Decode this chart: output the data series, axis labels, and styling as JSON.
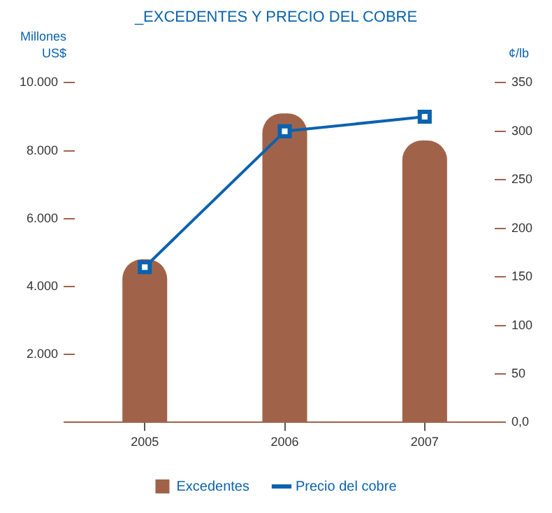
{
  "chart_data": {
    "type": "bar",
    "title": "_EXCEDENTES Y PRECIO DEL COBRE",
    "ylabel": "Millones US$",
    "y2label": "¢/lb",
    "categories": [
      "2005",
      "2006",
      "2007"
    ],
    "series": [
      {
        "name": "Excedentes",
        "color": "#a0634a",
        "values": [
          4800,
          9100,
          8300
        ]
      },
      {
        "name": "Precio del cobre",
        "type": "line",
        "axis": "y2",
        "color": "#0a62b0",
        "marker": "square",
        "values": [
          160,
          300,
          315
        ]
      }
    ],
    "ylim": [
      0,
      10000
    ],
    "yticks": [
      {
        "value": 0,
        "label": null
      },
      {
        "value": 2000,
        "label": "2.000"
      },
      {
        "value": 4000,
        "label": "4.000"
      },
      {
        "value": 6000,
        "label": "6.000"
      },
      {
        "value": 8000,
        "label": "8.000"
      },
      {
        "value": 10000,
        "label": "10.000"
      }
    ],
    "y2lim": [
      0,
      350
    ],
    "y2ticks": [
      {
        "value": 0,
        "label": "0,0"
      },
      50,
      100,
      150,
      200,
      250,
      300,
      350
    ],
    "grid": false,
    "legend": "bottom"
  }
}
